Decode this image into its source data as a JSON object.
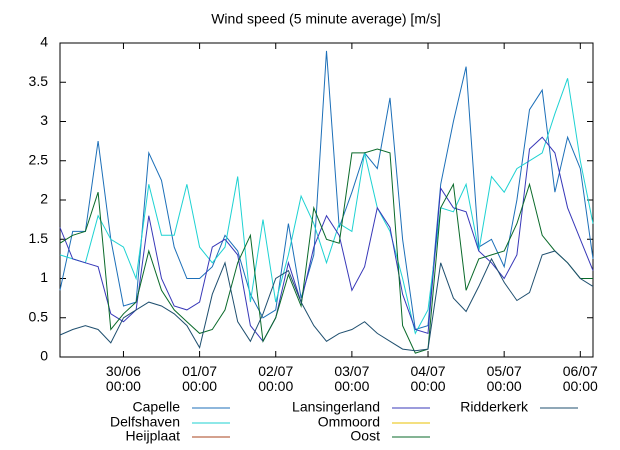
{
  "chart_data": {
    "type": "line",
    "title": "Wind speed (5 minute average) [m/s]",
    "x": [
      "29/06 04:00",
      "29/06 08:00",
      "29/06 12:00",
      "29/06 16:00",
      "29/06 20:00",
      "30/06 00:00",
      "30/06 04:00",
      "30/06 08:00",
      "30/06 12:00",
      "30/06 16:00",
      "30/06 20:00",
      "01/07 00:00",
      "01/07 04:00",
      "01/07 08:00",
      "01/07 12:00",
      "01/07 16:00",
      "01/07 20:00",
      "02/07 00:00",
      "02/07 04:00",
      "02/07 08:00",
      "02/07 12:00",
      "02/07 16:00",
      "02/07 20:00",
      "03/07 00:00",
      "03/07 04:00",
      "03/07 08:00",
      "03/07 12:00",
      "03/07 16:00",
      "03/07 20:00",
      "04/07 00:00",
      "04/07 04:00",
      "04/07 08:00",
      "04/07 12:00",
      "04/07 16:00",
      "04/07 20:00",
      "05/07 00:00",
      "05/07 04:00",
      "05/07 08:00",
      "05/07 12:00",
      "05/07 16:00",
      "05/07 20:00",
      "06/07 00:00",
      "06/07 04:00"
    ],
    "xlim": [
      "29/06 04:00",
      "06/07 04:00"
    ],
    "xticks": [
      "30/06 00:00",
      "01/07 00:00",
      "02/07 00:00",
      "03/07 00:00",
      "04/07 00:00",
      "05/07 00:00",
      "06/07 00:00"
    ],
    "ylim": [
      0,
      4
    ],
    "yticks": [
      0,
      0.5,
      1,
      1.5,
      2,
      2.5,
      3,
      3.5,
      4
    ],
    "series": [
      {
        "name": "Capelle",
        "color": "#1c6fb8",
        "values": [
          0.85,
          1.6,
          1.6,
          2.75,
          1.5,
          0.65,
          0.7,
          2.6,
          2.25,
          1.4,
          1.0,
          1.0,
          1.15,
          1.55,
          1.35,
          0.8,
          0.5,
          0.6,
          1.7,
          0.75,
          1.3,
          3.9,
          1.65,
          2.1,
          2.6,
          2.4,
          3.3,
          1.5,
          0.35,
          0.4,
          2.2,
          3.0,
          3.7,
          1.4,
          1.5,
          1.15,
          2.0,
          3.15,
          3.4,
          2.1,
          2.8,
          2.4,
          1.25
        ]
      },
      {
        "name": "Delfshaven",
        "color": "#1ed2d2",
        "values": [
          1.3,
          1.25,
          1.2,
          1.8,
          1.5,
          1.4,
          1.0,
          2.2,
          1.55,
          1.55,
          2.2,
          1.4,
          1.2,
          1.4,
          2.3,
          0.7,
          1.75,
          0.7,
          1.3,
          2.05,
          1.7,
          1.2,
          1.7,
          1.6,
          2.6,
          1.9,
          1.6,
          1.0,
          0.3,
          0.6,
          1.9,
          1.85,
          2.2,
          1.35,
          2.3,
          2.1,
          2.4,
          2.5,
          2.6,
          3.1,
          3.55,
          2.5,
          1.7
        ]
      },
      {
        "name": "Heijplaat",
        "color": "#a8431c",
        "values": [
          null,
          null,
          null,
          null,
          null,
          null,
          null,
          null,
          null,
          null,
          null,
          null,
          null,
          null,
          null,
          null,
          null,
          null,
          null,
          null,
          null,
          null,
          null,
          null,
          null,
          null,
          null,
          null,
          null,
          null,
          null,
          null,
          null,
          null,
          null,
          null,
          null,
          null,
          null,
          null,
          null,
          null,
          null
        ]
      },
      {
        "name": "Lansingerland",
        "color": "#3838b8",
        "values": [
          1.65,
          1.25,
          1.2,
          1.15,
          0.55,
          0.45,
          0.6,
          1.8,
          1.0,
          0.65,
          0.6,
          0.7,
          1.4,
          1.5,
          1.3,
          0.4,
          0.2,
          0.5,
          1.2,
          0.7,
          1.4,
          1.8,
          1.55,
          0.85,
          1.15,
          1.9,
          1.65,
          0.8,
          0.35,
          0.3,
          2.15,
          1.9,
          1.85,
          1.35,
          1.2,
          1.0,
          1.3,
          2.65,
          2.8,
          2.6,
          1.9,
          1.5,
          1.1
        ]
      },
      {
        "name": "Ommoord",
        "color": "#e8c000",
        "values": [
          null,
          null,
          null,
          null,
          null,
          null,
          null,
          null,
          null,
          null,
          null,
          null,
          null,
          null,
          null,
          null,
          null,
          null,
          null,
          null,
          null,
          null,
          null,
          null,
          null,
          null,
          null,
          null,
          null,
          null,
          null,
          null,
          null,
          null,
          null,
          null,
          null,
          null,
          null,
          null,
          null,
          null,
          null
        ]
      },
      {
        "name": "Oost",
        "color": "#0a6a2a",
        "values": [
          1.45,
          1.55,
          1.6,
          2.1,
          0.35,
          0.55,
          0.7,
          1.35,
          0.85,
          0.6,
          0.45,
          0.3,
          0.35,
          0.6,
          1.2,
          1.55,
          0.2,
          0.5,
          1.05,
          0.65,
          1.9,
          1.5,
          1.45,
          2.6,
          2.6,
          2.65,
          2.6,
          0.4,
          0.05,
          0.1,
          1.9,
          2.2,
          0.85,
          1.25,
          1.3,
          1.35,
          1.7,
          2.2,
          1.55,
          1.35,
          1.2,
          1.0,
          1.0
        ]
      },
      {
        "name": "Ridderkerk",
        "color": "#1f4f6f",
        "values": [
          0.28,
          0.35,
          0.4,
          0.35,
          0.18,
          0.5,
          0.6,
          0.7,
          0.65,
          0.55,
          0.4,
          0.12,
          0.8,
          1.2,
          0.45,
          0.2,
          0.55,
          1.0,
          1.1,
          0.7,
          0.4,
          0.2,
          0.3,
          0.35,
          0.45,
          0.3,
          0.2,
          0.1,
          0.08,
          0.1,
          1.2,
          0.75,
          0.58,
          0.9,
          1.25,
          0.95,
          0.72,
          0.82,
          1.3,
          1.35,
          1.2,
          1.0,
          0.9
        ]
      }
    ]
  }
}
